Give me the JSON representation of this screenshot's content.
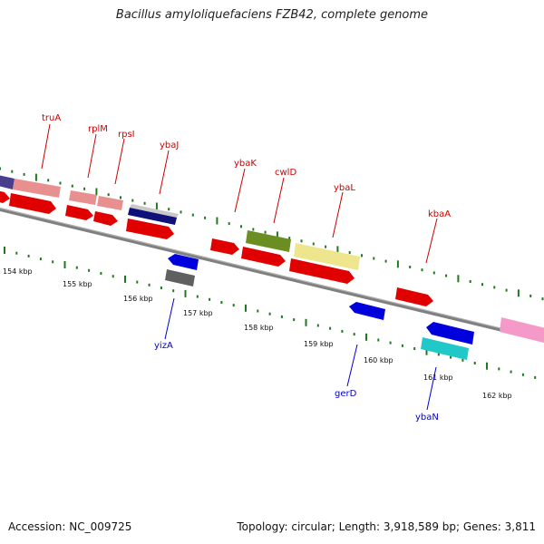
{
  "title": "Bacillus amyloliquefaciens FZB42, complete genome",
  "footer": {
    "accession": "Accession: NC_009725",
    "stats": "Topology: circular; Length: 3,918,589 bp; Genes: 3,811"
  },
  "colors": {
    "backbone": "#808080",
    "tick": "#1f7a1f",
    "forward_label": "#cc0000",
    "reverse_label": "#0000cc"
  },
  "scale_labels": [
    "154 kbp",
    "155 kbp",
    "156 kbp",
    "157 kbp",
    "158 kbp",
    "159 kbp",
    "160 kbp",
    "161 kbp",
    "162 kbp"
  ],
  "genes_forward": [
    {
      "name": "truA",
      "color": "#cc0000"
    },
    {
      "name": "rplM",
      "color": "#cc0000"
    },
    {
      "name": "rpsI",
      "color": "#cc0000"
    },
    {
      "name": "ybaJ",
      "color": "#cc0000"
    },
    {
      "name": "ybaK",
      "color": "#cc0000"
    },
    {
      "name": "cwlD",
      "color": "#cc0000"
    },
    {
      "name": "ybaL",
      "color": "#cc0000"
    },
    {
      "name": "kbaA",
      "color": "#cc0000"
    }
  ],
  "genes_reverse": [
    {
      "name": "yizA",
      "color": "#0000cc"
    },
    {
      "name": "gerD",
      "color": "#0000cc"
    },
    {
      "name": "ybaN",
      "color": "#0000cc"
    }
  ]
}
